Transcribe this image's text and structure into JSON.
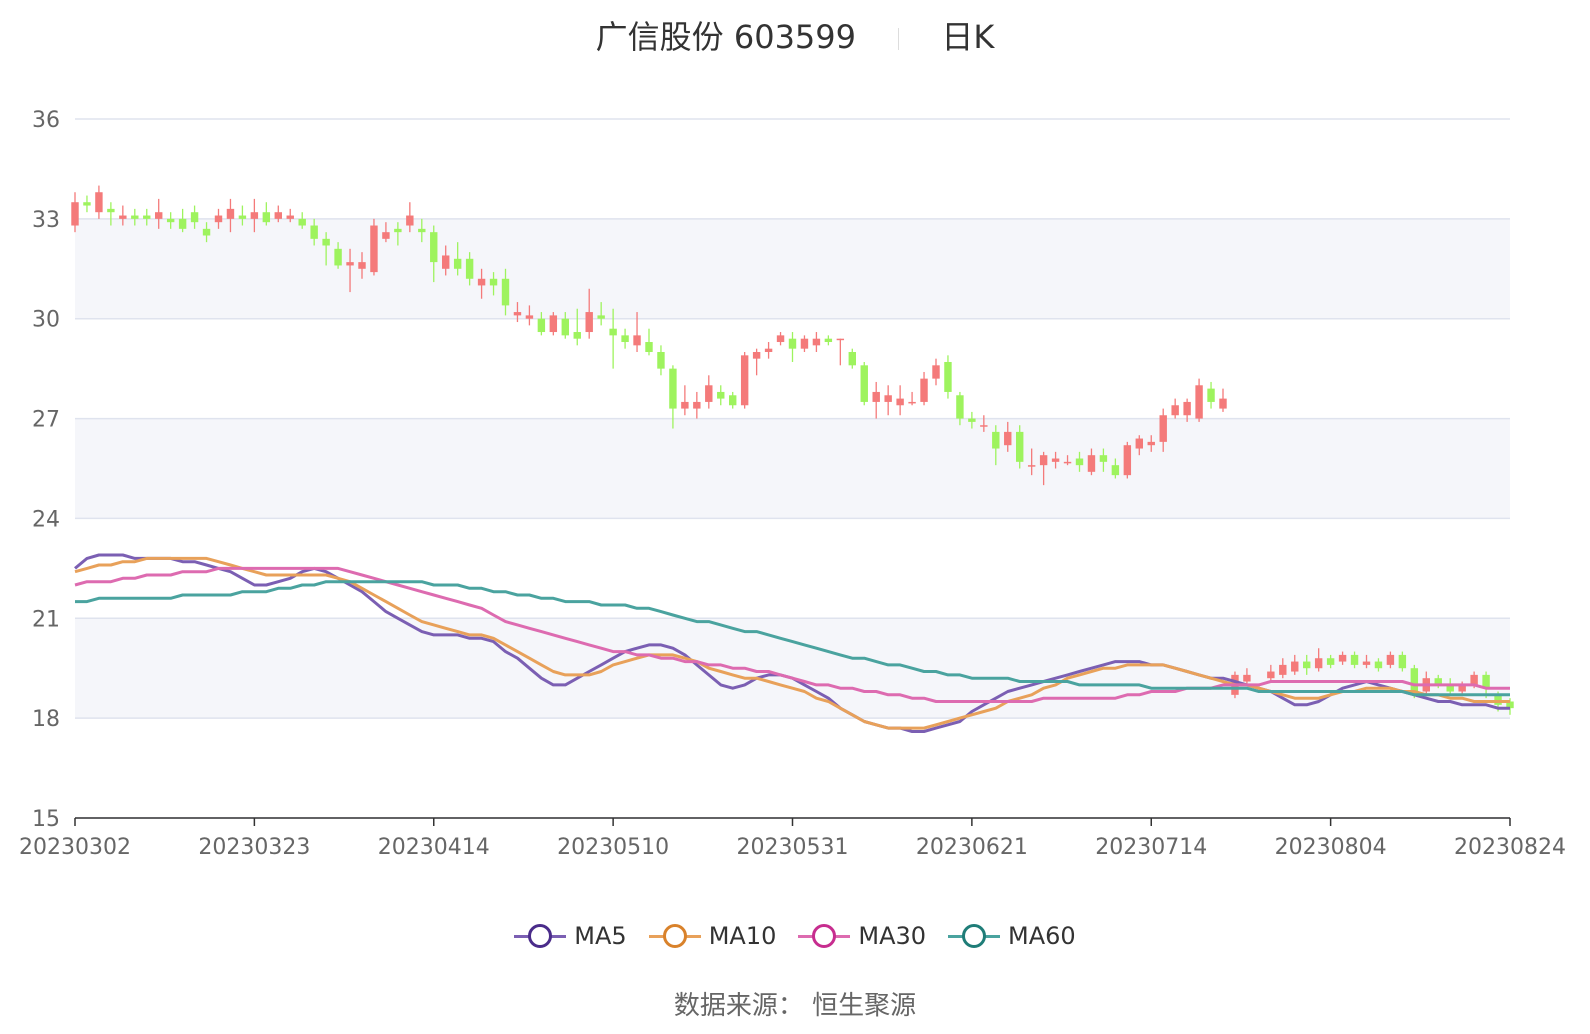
{
  "title": {
    "name": "广信股份",
    "code": "603599",
    "period": "日K"
  },
  "source": "数据来源： 恒生聚源",
  "colors": {
    "up": "#f47a7a",
    "down": "#9ef35e",
    "grid": "#dfe3ee",
    "band": "#f5f6fa",
    "axis": "#333333",
    "tick_text": "#666666"
  },
  "chart_data": {
    "type": "candlestick",
    "y_axis": {
      "min": 15,
      "max": 36,
      "ticks": [
        15,
        18,
        21,
        24,
        27,
        30,
        33,
        36
      ]
    },
    "x_tick_labels": [
      "20230302",
      "20230323",
      "20230414",
      "20230510",
      "20230531",
      "20230621",
      "20230714",
      "20230804",
      "20230824"
    ],
    "x_tick_indices": [
      0,
      15,
      30,
      45,
      60,
      75,
      90,
      105,
      120
    ],
    "n_points": 121,
    "legend": [
      {
        "name": "MA5",
        "color": "#7b5fb3",
        "marker": "#4a2c8a"
      },
      {
        "name": "MA10",
        "color": "#e8a15a",
        "marker": "#d9822b"
      },
      {
        "name": "MA30",
        "color": "#dd6bb0",
        "marker": "#c72d8f"
      },
      {
        "name": "MA60",
        "color": "#4aa39f",
        "marker": "#1f7d78"
      }
    ],
    "candles": [
      [
        32.8,
        33.5,
        33.8,
        32.6
      ],
      [
        33.5,
        33.4,
        33.7,
        33.2
      ],
      [
        33.2,
        33.8,
        34.0,
        33.0
      ],
      [
        33.3,
        33.2,
        33.5,
        32.8
      ],
      [
        33.0,
        33.1,
        33.4,
        32.8
      ],
      [
        33.1,
        33.0,
        33.3,
        32.8
      ],
      [
        33.1,
        33.0,
        33.3,
        32.8
      ],
      [
        33.0,
        33.2,
        33.6,
        32.7
      ],
      [
        33.0,
        32.9,
        33.2,
        32.7
      ],
      [
        33.0,
        32.7,
        33.3,
        32.6
      ],
      [
        33.2,
        32.9,
        33.4,
        32.7
      ],
      [
        32.7,
        32.5,
        32.9,
        32.3
      ],
      [
        32.9,
        33.1,
        33.3,
        32.7
      ],
      [
        33.0,
        33.3,
        33.6,
        32.6
      ],
      [
        33.1,
        33.0,
        33.4,
        32.8
      ],
      [
        33.0,
        33.2,
        33.6,
        32.6
      ],
      [
        33.2,
        32.9,
        33.5,
        32.8
      ],
      [
        33.0,
        33.2,
        33.4,
        32.9
      ],
      [
        33.0,
        33.1,
        33.3,
        32.9
      ],
      [
        33.0,
        32.8,
        33.2,
        32.7
      ],
      [
        32.8,
        32.4,
        33.0,
        32.2
      ],
      [
        32.4,
        32.2,
        32.6,
        31.6
      ],
      [
        32.1,
        31.6,
        32.3,
        31.5
      ],
      [
        31.6,
        31.7,
        32.1,
        30.8
      ],
      [
        31.5,
        31.7,
        32.0,
        31.2
      ],
      [
        31.4,
        32.8,
        33.0,
        31.3
      ],
      [
        32.4,
        32.6,
        32.9,
        32.3
      ],
      [
        32.7,
        32.6,
        32.9,
        32.2
      ],
      [
        32.8,
        33.1,
        33.5,
        32.6
      ],
      [
        32.7,
        32.6,
        33.0,
        32.3
      ],
      [
        32.6,
        31.7,
        32.8,
        31.1
      ],
      [
        31.5,
        31.9,
        32.2,
        31.3
      ],
      [
        31.8,
        31.5,
        32.3,
        31.3
      ],
      [
        31.8,
        31.2,
        32.0,
        31.0
      ],
      [
        31.0,
        31.2,
        31.5,
        30.6
      ],
      [
        31.2,
        31.0,
        31.4,
        30.7
      ],
      [
        31.2,
        30.4,
        31.5,
        30.1
      ],
      [
        30.1,
        30.2,
        30.5,
        29.9
      ],
      [
        30.0,
        30.1,
        30.4,
        29.8
      ],
      [
        30.0,
        29.6,
        30.2,
        29.5
      ],
      [
        29.6,
        30.1,
        30.2,
        29.5
      ],
      [
        30.0,
        29.5,
        30.2,
        29.4
      ],
      [
        29.6,
        29.4,
        30.3,
        29.2
      ],
      [
        29.6,
        30.2,
        30.9,
        29.4
      ],
      [
        30.1,
        30.0,
        30.5,
        29.8
      ],
      [
        29.7,
        29.5,
        30.3,
        28.5
      ],
      [
        29.5,
        29.3,
        29.7,
        29.1
      ],
      [
        29.2,
        29.5,
        30.2,
        29.0
      ],
      [
        29.3,
        29.0,
        29.7,
        28.9
      ],
      [
        29.0,
        28.5,
        29.2,
        28.3
      ],
      [
        28.5,
        27.3,
        28.6,
        26.7
      ],
      [
        27.3,
        27.5,
        28.0,
        27.1
      ],
      [
        27.3,
        27.5,
        27.8,
        27.0
      ],
      [
        27.5,
        28.0,
        28.3,
        27.3
      ],
      [
        27.8,
        27.6,
        28.0,
        27.4
      ],
      [
        27.7,
        27.4,
        27.8,
        27.3
      ],
      [
        27.4,
        28.9,
        29.0,
        27.3
      ],
      [
        28.8,
        29.0,
        29.1,
        28.3
      ],
      [
        29.0,
        29.1,
        29.3,
        28.8
      ],
      [
        29.3,
        29.5,
        29.6,
        29.2
      ],
      [
        29.4,
        29.1,
        29.6,
        28.7
      ],
      [
        29.1,
        29.4,
        29.5,
        29.0
      ],
      [
        29.2,
        29.4,
        29.6,
        29.0
      ],
      [
        29.4,
        29.3,
        29.5,
        29.2
      ],
      [
        29.4,
        29.4,
        29.4,
        28.6
      ],
      [
        29.0,
        28.6,
        29.1,
        28.5
      ],
      [
        28.6,
        27.5,
        28.7,
        27.4
      ],
      [
        27.5,
        27.8,
        28.1,
        27.0
      ],
      [
        27.5,
        27.7,
        28.0,
        27.1
      ],
      [
        27.4,
        27.6,
        28.0,
        27.1
      ],
      [
        27.5,
        27.5,
        27.8,
        27.4
      ],
      [
        27.5,
        28.2,
        28.4,
        27.4
      ],
      [
        28.2,
        28.6,
        28.8,
        28.0
      ],
      [
        28.7,
        27.8,
        28.9,
        27.6
      ],
      [
        27.7,
        27.0,
        27.8,
        26.8
      ],
      [
        27.0,
        26.9,
        27.2,
        26.7
      ],
      [
        26.8,
        26.8,
        27.1,
        26.6
      ],
      [
        26.6,
        26.1,
        26.8,
        25.6
      ],
      [
        26.2,
        26.6,
        26.9,
        26.0
      ],
      [
        26.6,
        25.7,
        26.8,
        25.5
      ],
      [
        25.6,
        25.6,
        26.1,
        25.3
      ],
      [
        25.6,
        25.9,
        26.0,
        25.0
      ],
      [
        25.7,
        25.8,
        26.0,
        25.5
      ],
      [
        25.7,
        25.7,
        25.9,
        25.6
      ],
      [
        25.8,
        25.6,
        26.0,
        25.4
      ],
      [
        25.4,
        25.9,
        26.1,
        25.3
      ],
      [
        25.9,
        25.7,
        26.1,
        25.4
      ],
      [
        25.6,
        25.3,
        25.8,
        25.2
      ],
      [
        25.3,
        26.2,
        26.3,
        25.2
      ],
      [
        26.1,
        26.4,
        26.5,
        25.9
      ],
      [
        26.2,
        26.3,
        26.5,
        26.0
      ],
      [
        26.3,
        27.1,
        27.3,
        26.0
      ],
      [
        27.1,
        27.4,
        27.6,
        27.0
      ],
      [
        27.1,
        27.5,
        27.6,
        26.9
      ],
      [
        27.0,
        28.0,
        28.2,
        26.9
      ],
      [
        27.9,
        27.5,
        28.1,
        27.3
      ],
      [
        27.3,
        27.6,
        27.9,
        27.2
      ],
      null,
      null,
      null,
      null,
      null,
      null,
      null,
      null,
      null,
      null,
      null,
      null,
      null,
      null,
      null,
      null,
      null,
      null,
      null,
      null,
      null,
      null,
      null,
      null,
      null
    ],
    "low_candles": [
      [
        97,
        18.7,
        19.3,
        19.4,
        18.6
      ],
      [
        98,
        19.1,
        19.3,
        19.5,
        19.0
      ],
      [
        100,
        19.2,
        19.4,
        19.6,
        19.1
      ],
      [
        101,
        19.3,
        19.6,
        19.8,
        19.2
      ],
      [
        102,
        19.4,
        19.7,
        19.9,
        19.3
      ],
      [
        103,
        19.7,
        19.5,
        19.9,
        19.3
      ],
      [
        104,
        19.5,
        19.8,
        20.1,
        19.4
      ],
      [
        105,
        19.8,
        19.6,
        19.9,
        19.5
      ],
      [
        106,
        19.7,
        19.9,
        20.0,
        19.6
      ],
      [
        107,
        19.9,
        19.6,
        20.0,
        19.5
      ],
      [
        108,
        19.6,
        19.7,
        19.9,
        19.5
      ],
      [
        109,
        19.7,
        19.5,
        19.8,
        19.4
      ],
      [
        110,
        19.6,
        19.9,
        20.0,
        19.5
      ],
      [
        111,
        19.9,
        19.5,
        20.0,
        19.4
      ],
      [
        112,
        19.5,
        18.7,
        19.6,
        18.6
      ],
      [
        113,
        18.8,
        19.2,
        19.4,
        18.7
      ],
      [
        114,
        19.2,
        19.0,
        19.3,
        18.9
      ],
      [
        115,
        19.0,
        18.8,
        19.2,
        18.7
      ],
      [
        116,
        18.8,
        19.0,
        19.1,
        18.7
      ],
      [
        117,
        19.0,
        19.3,
        19.4,
        18.9
      ],
      [
        118,
        19.3,
        18.9,
        19.4,
        18.6
      ],
      [
        119,
        18.7,
        18.4,
        18.8,
        18.2
      ],
      [
        120,
        18.5,
        18.3,
        18.6,
        18.1
      ]
    ],
    "ma5": [
      22.5,
      22.8,
      22.9,
      22.9,
      22.9,
      22.8,
      22.8,
      22.8,
      22.8,
      22.7,
      22.7,
      22.6,
      22.5,
      22.4,
      22.2,
      22.0,
      22.0,
      22.1,
      22.2,
      22.4,
      22.5,
      22.4,
      22.2,
      22.0,
      21.8,
      21.5,
      21.2,
      21.0,
      20.8,
      20.6,
      20.5,
      20.5,
      20.5,
      20.4,
      20.4,
      20.3,
      20.0,
      19.8,
      19.5,
      19.2,
      19.0,
      19.0,
      19.2,
      19.4,
      19.6,
      19.8,
      20.0,
      20.1,
      20.2,
      20.2,
      20.1,
      19.9,
      19.6,
      19.3,
      19.0,
      18.9,
      19.0,
      19.2,
      19.3,
      19.3,
      19.2,
      19.0,
      18.8,
      18.6,
      18.3,
      18.1,
      17.9,
      17.8,
      17.7,
      17.7,
      17.6,
      17.6,
      17.7,
      17.8,
      17.9,
      18.2,
      18.4,
      18.6,
      18.8,
      18.9,
      19.0,
      19.1,
      19.2,
      19.3,
      19.4,
      19.5,
      19.6,
      19.7,
      19.7,
      19.7,
      19.6,
      19.6,
      19.5,
      19.4,
      19.3,
      19.2,
      19.2,
      19.1,
      19.0,
      18.9,
      18.8,
      18.6,
      18.4,
      18.4,
      18.5,
      18.7,
      18.9,
      19.0,
      19.1,
      19.0,
      18.9,
      18.8,
      18.7,
      18.6,
      18.5,
      18.5,
      18.4,
      18.4,
      18.4,
      18.3,
      18.3
    ],
    "ma10": [
      22.4,
      22.5,
      22.6,
      22.6,
      22.7,
      22.7,
      22.8,
      22.8,
      22.8,
      22.8,
      22.8,
      22.8,
      22.7,
      22.6,
      22.5,
      22.4,
      22.3,
      22.3,
      22.3,
      22.3,
      22.3,
      22.3,
      22.2,
      22.1,
      21.9,
      21.7,
      21.5,
      21.3,
      21.1,
      20.9,
      20.8,
      20.7,
      20.6,
      20.5,
      20.5,
      20.4,
      20.2,
      20.0,
      19.8,
      19.6,
      19.4,
      19.3,
      19.3,
      19.3,
      19.4,
      19.6,
      19.7,
      19.8,
      19.9,
      19.9,
      19.9,
      19.8,
      19.7,
      19.5,
      19.4,
      19.3,
      19.2,
      19.2,
      19.1,
      19.0,
      18.9,
      18.8,
      18.6,
      18.5,
      18.3,
      18.1,
      17.9,
      17.8,
      17.7,
      17.7,
      17.7,
      17.7,
      17.8,
      17.9,
      18.0,
      18.1,
      18.2,
      18.3,
      18.5,
      18.6,
      18.7,
      18.9,
      19.0,
      19.2,
      19.3,
      19.4,
      19.5,
      19.5,
      19.6,
      19.6,
      19.6,
      19.6,
      19.5,
      19.4,
      19.3,
      19.2,
      19.1,
      19.0,
      19.0,
      18.9,
      18.8,
      18.7,
      18.6,
      18.6,
      18.6,
      18.7,
      18.8,
      18.8,
      18.9,
      18.9,
      18.9,
      18.8,
      18.8,
      18.7,
      18.7,
      18.6,
      18.6,
      18.5,
      18.5,
      18.5,
      18.5
    ],
    "ma30": [
      22.0,
      22.1,
      22.1,
      22.1,
      22.2,
      22.2,
      22.3,
      22.3,
      22.3,
      22.4,
      22.4,
      22.4,
      22.5,
      22.5,
      22.5,
      22.5,
      22.5,
      22.5,
      22.5,
      22.5,
      22.5,
      22.5,
      22.5,
      22.4,
      22.3,
      22.2,
      22.1,
      22.0,
      21.9,
      21.8,
      21.7,
      21.6,
      21.5,
      21.4,
      21.3,
      21.1,
      20.9,
      20.8,
      20.7,
      20.6,
      20.5,
      20.4,
      20.3,
      20.2,
      20.1,
      20.0,
      20.0,
      19.9,
      19.9,
      19.8,
      19.8,
      19.7,
      19.7,
      19.6,
      19.6,
      19.5,
      19.5,
      19.4,
      19.4,
      19.3,
      19.2,
      19.1,
      19.0,
      19.0,
      18.9,
      18.9,
      18.8,
      18.8,
      18.7,
      18.7,
      18.6,
      18.6,
      18.5,
      18.5,
      18.5,
      18.5,
      18.5,
      18.5,
      18.5,
      18.5,
      18.5,
      18.6,
      18.6,
      18.6,
      18.6,
      18.6,
      18.6,
      18.6,
      18.7,
      18.7,
      18.8,
      18.8,
      18.8,
      18.9,
      18.9,
      18.9,
      19.0,
      19.0,
      19.0,
      19.0,
      19.1,
      19.1,
      19.1,
      19.1,
      19.1,
      19.1,
      19.1,
      19.1,
      19.1,
      19.1,
      19.1,
      19.1,
      19.0,
      19.0,
      19.0,
      19.0,
      19.0,
      19.0,
      18.9,
      18.9,
      18.9
    ],
    "ma60": [
      21.5,
      21.5,
      21.6,
      21.6,
      21.6,
      21.6,
      21.6,
      21.6,
      21.6,
      21.7,
      21.7,
      21.7,
      21.7,
      21.7,
      21.8,
      21.8,
      21.8,
      21.9,
      21.9,
      22.0,
      22.0,
      22.1,
      22.1,
      22.1,
      22.1,
      22.1,
      22.1,
      22.1,
      22.1,
      22.1,
      22.0,
      22.0,
      22.0,
      21.9,
      21.9,
      21.8,
      21.8,
      21.7,
      21.7,
      21.6,
      21.6,
      21.5,
      21.5,
      21.5,
      21.4,
      21.4,
      21.4,
      21.3,
      21.3,
      21.2,
      21.1,
      21.0,
      20.9,
      20.9,
      20.8,
      20.7,
      20.6,
      20.6,
      20.5,
      20.4,
      20.3,
      20.2,
      20.1,
      20.0,
      19.9,
      19.8,
      19.8,
      19.7,
      19.6,
      19.6,
      19.5,
      19.4,
      19.4,
      19.3,
      19.3,
      19.2,
      19.2,
      19.2,
      19.2,
      19.1,
      19.1,
      19.1,
      19.1,
      19.1,
      19.0,
      19.0,
      19.0,
      19.0,
      19.0,
      19.0,
      18.9,
      18.9,
      18.9,
      18.9,
      18.9,
      18.9,
      18.9,
      18.9,
      18.9,
      18.8,
      18.8,
      18.8,
      18.8,
      18.8,
      18.8,
      18.8,
      18.8,
      18.8,
      18.8,
      18.8,
      18.8,
      18.8,
      18.7,
      18.7,
      18.7,
      18.7,
      18.7,
      18.7,
      18.7,
      18.7,
      18.7
    ]
  }
}
